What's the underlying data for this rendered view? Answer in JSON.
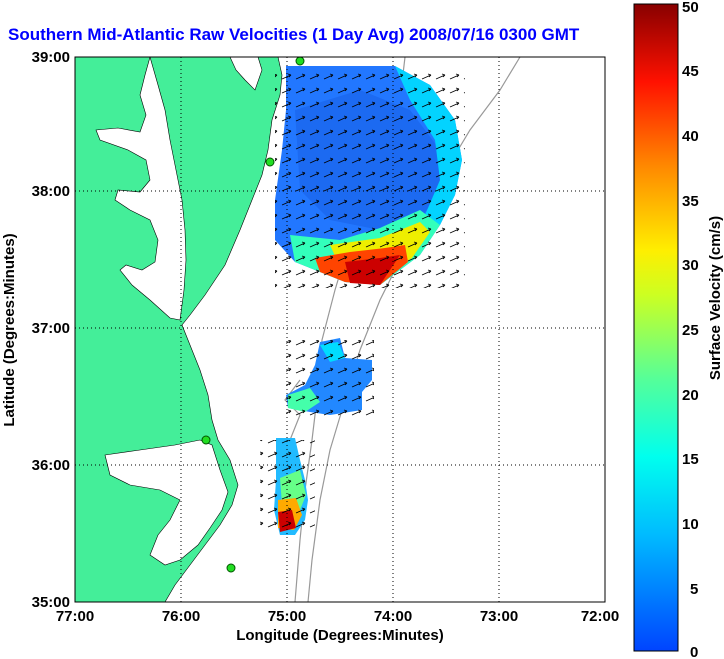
{
  "title": "Southern Mid-Atlantic Raw Velocities (1 Day Avg) 2008/07/16 0300 GMT",
  "x_axis": {
    "label": "Longitude (Degrees:Minutes)",
    "ticks": [
      "77:00",
      "76:00",
      "75:00",
      "74:00",
      "73:00",
      "72:00"
    ]
  },
  "y_axis": {
    "label": "Latitude (Degrees:Minutes)",
    "ticks": [
      "39:00",
      "38:00",
      "37:00",
      "36:00",
      "35:00"
    ]
  },
  "colorbar": {
    "label": "Surface Velocity (cm/s)",
    "ticks": [
      "50",
      "45",
      "40",
      "35",
      "30",
      "25",
      "20",
      "15",
      "10",
      "5",
      "0"
    ],
    "min": 0,
    "max": 50
  },
  "colors": {
    "land": "#44ee99",
    "title": "#0000ff",
    "contour": "#999999",
    "station": "#22dd22"
  }
}
